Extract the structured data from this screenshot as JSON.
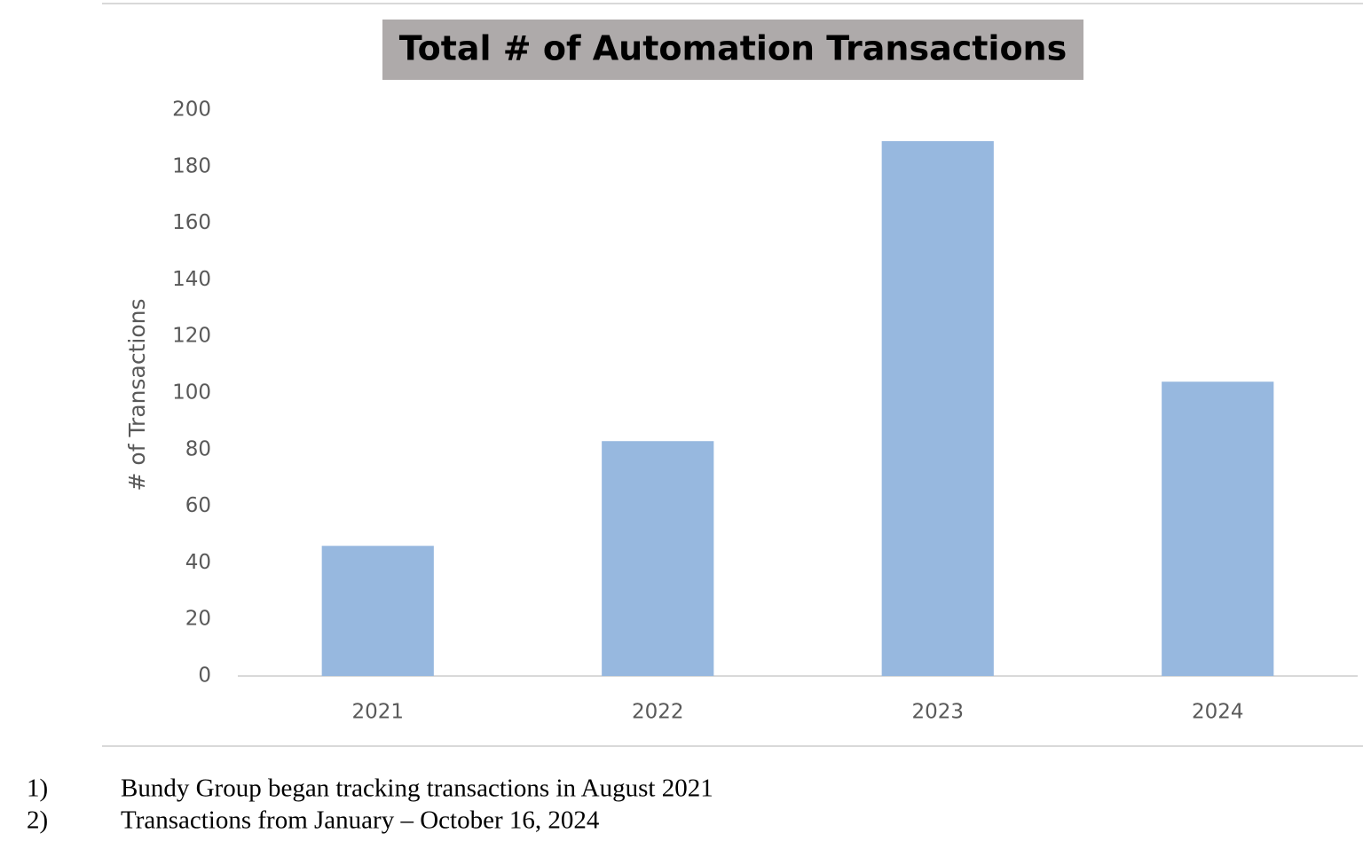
{
  "chart_data": {
    "type": "bar",
    "title": "Total # of Automation Transactions",
    "y_label": "# of Transactions",
    "categories": [
      "2021",
      "2022",
      "2023",
      "2024"
    ],
    "values": [
      46,
      83,
      189,
      104
    ],
    "color": "#97b8df",
    "ylim": [
      0,
      200
    ],
    "yticks": [
      0,
      20,
      40,
      60,
      80,
      100,
      120,
      140,
      160,
      180,
      200
    ],
    "grid": false
  },
  "notes": [
    {
      "marker": "1)",
      "text": "Bundy Group began tracking transactions in August 2021"
    },
    {
      "marker": "2)",
      "text": "Transactions from January – October 16, 2024"
    }
  ]
}
